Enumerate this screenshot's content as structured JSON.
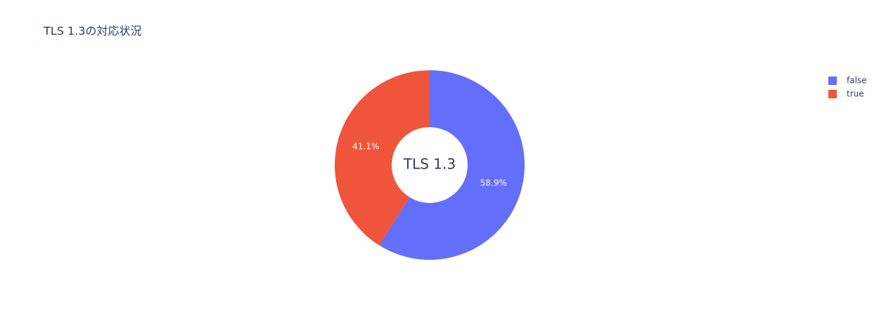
{
  "chart_data": {
    "type": "pie",
    "title": "TLS 1.3の対応状況",
    "annotation": "TLS 1.3",
    "categories": [
      "false",
      "true"
    ],
    "values": [
      58.9,
      41.1
    ],
    "value_labels": [
      "58.9%",
      "41.1%"
    ],
    "colors": [
      "#636efa",
      "#ef553b"
    ],
    "hole": 0.4,
    "legend": "top-right"
  }
}
